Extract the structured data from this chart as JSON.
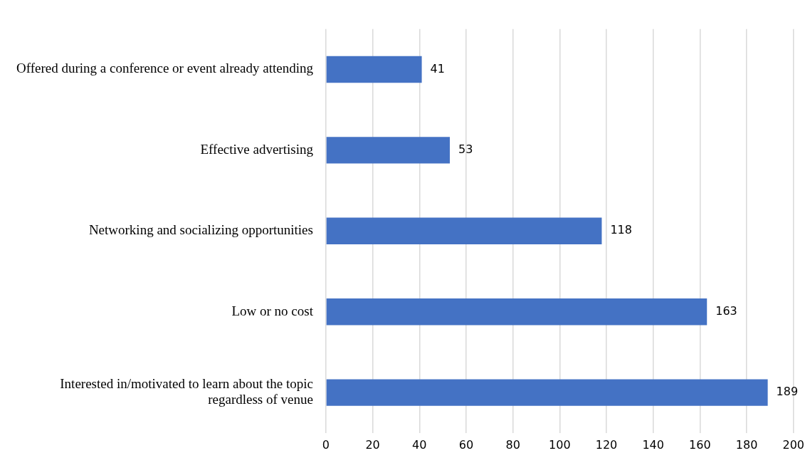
{
  "chart_data": {
    "type": "bar",
    "orientation": "horizontal",
    "categories": [
      "Offered during a conference or event already attending",
      "Effective advertising",
      "Networking and socializing opportunities",
      "Low or no cost",
      "Interested in/motivated to learn about the topic regardless of venue"
    ],
    "values": [
      41,
      53,
      118,
      163,
      189
    ],
    "color": "#4472c4",
    "xlim": [
      0,
      200
    ],
    "xticks": [
      0,
      20,
      40,
      60,
      80,
      100,
      120,
      140,
      160,
      180,
      200
    ],
    "grid": "x",
    "data_labels": true,
    "legend": false
  }
}
